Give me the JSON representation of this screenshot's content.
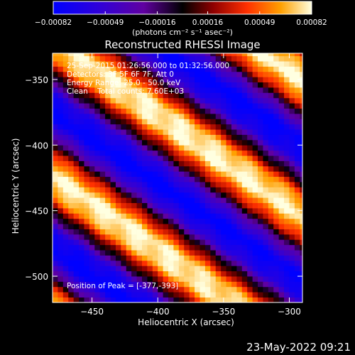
{
  "chart_data": {
    "type": "heatmap",
    "title": "Reconstructed RHESSI Image",
    "xlabel": "Heliocentric X (arcsec)",
    "ylabel": "Heliocentric Y (arcsec)",
    "xlim": [
      -480,
      -290
    ],
    "ylim": [
      -520,
      -330
    ],
    "x_ticks": [
      -450,
      -400,
      -350,
      -300
    ],
    "y_ticks": [
      -350,
      -400,
      -450,
      -500
    ],
    "x_tick_labels": [
      "−450",
      "−400",
      "−350",
      "−300"
    ],
    "y_tick_labels": [
      "−350",
      "−400",
      "−450",
      "−500"
    ],
    "colorbar": {
      "range": [
        -0.00082,
        0.00082
      ],
      "tick_labels": [
        "−0.00082",
        "−0.00049",
        "−0.00016",
        "0.00016",
        "0.00049",
        "0.00082"
      ],
      "tick_values": [
        -0.00082,
        -0.00049,
        -0.00016,
        0.00016,
        0.00049,
        0.00082
      ],
      "units": "(photons cm⁻² s⁻¹ asec⁻²)"
    },
    "annotations": [
      "25-Sep-2015 01:26:56.000 to 01:32:56.000",
      "Detectors: 3F 5F 6F 7F, Att 0",
      "Energy Range: 25.0 - 50.0 keV",
      "Clean    Total counts: 7.60E+03"
    ],
    "peak_label": "Position of Peak = [-377,-393]",
    "peak_position": [
      -377,
      -393
    ],
    "pattern": {
      "stripe_angle_deg": 55,
      "period_arcsec": 85,
      "peak_value": 0.00082,
      "min_value": -0.00082
    }
  },
  "footer": {
    "date": "23-May-2022 09:21"
  }
}
